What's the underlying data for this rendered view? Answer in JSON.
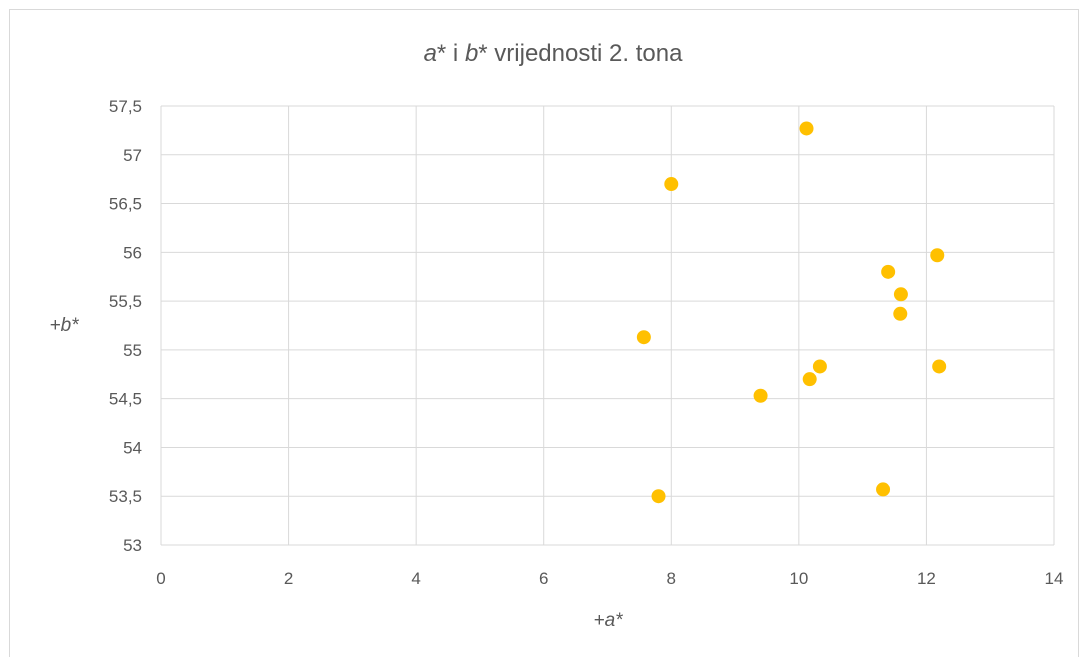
{
  "chart_data": {
    "type": "scatter",
    "title_parts": [
      {
        "text": "a",
        "italic": true
      },
      {
        "text": "* i ",
        "italic": false
      },
      {
        "text": "b",
        "italic": true
      },
      {
        "text": "* vrijednosti 2. tona",
        "italic": false
      }
    ],
    "xlabel_parts": [
      {
        "text": "+",
        "italic": true
      },
      {
        "text": "a",
        "italic": true
      },
      {
        "text": "*",
        "italic": true
      }
    ],
    "ylabel_parts": [
      {
        "text": "+",
        "italic": true
      },
      {
        "text": "b",
        "italic": true
      },
      {
        "text": "*",
        "italic": true
      }
    ],
    "xlim": [
      0,
      14
    ],
    "ylim": [
      53,
      57.5
    ],
    "x_ticks": [
      0,
      2,
      4,
      6,
      8,
      10,
      12,
      14
    ],
    "x_tick_labels": [
      "0",
      "2",
      "4",
      "6",
      "8",
      "10",
      "12",
      "14"
    ],
    "y_ticks": [
      53,
      53.5,
      54,
      54.5,
      55,
      55.5,
      56,
      56.5,
      57,
      57.5
    ],
    "y_tick_labels": [
      "53",
      "53,5",
      "54",
      "54,5",
      "55",
      "55,5",
      "56",
      "56,5",
      "57",
      "57,5"
    ],
    "grid": true,
    "legend": "none",
    "marker_color": "#FFC000",
    "grid_color": "#d9d9d9",
    "points": [
      {
        "x": 10.12,
        "y": 57.27
      },
      {
        "x": 8.0,
        "y": 56.7
      },
      {
        "x": 12.17,
        "y": 55.97
      },
      {
        "x": 11.4,
        "y": 55.8
      },
      {
        "x": 11.6,
        "y": 55.57
      },
      {
        "x": 11.59,
        "y": 55.37
      },
      {
        "x": 7.57,
        "y": 55.13
      },
      {
        "x": 10.33,
        "y": 54.83
      },
      {
        "x": 12.2,
        "y": 54.83
      },
      {
        "x": 10.17,
        "y": 54.7
      },
      {
        "x": 9.4,
        "y": 54.53
      },
      {
        "x": 11.32,
        "y": 53.57
      },
      {
        "x": 7.8,
        "y": 53.5
      }
    ]
  }
}
